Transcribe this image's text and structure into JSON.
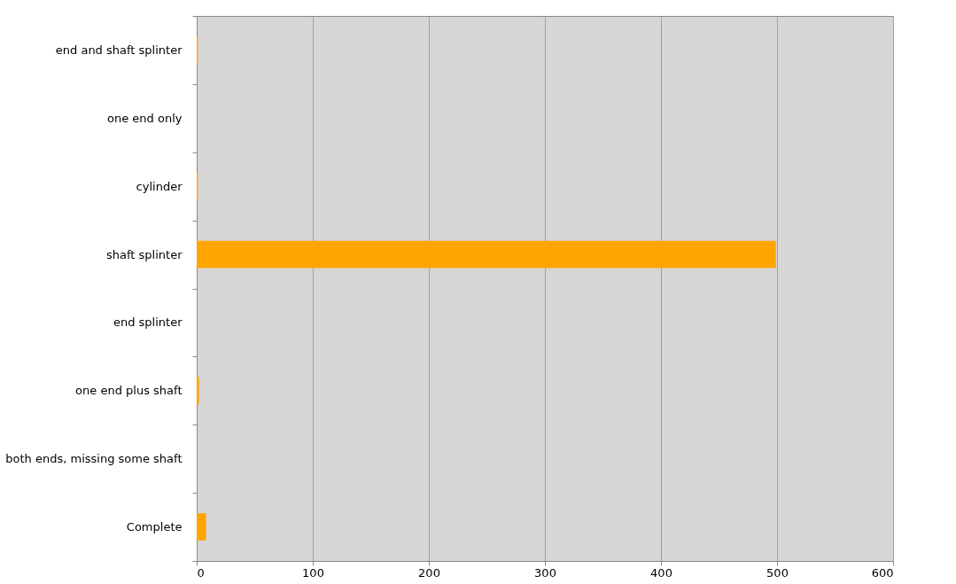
{
  "chart_data": {
    "type": "bar",
    "orientation": "horizontal",
    "categories": [
      "end and shaft splinter",
      "one end only",
      "cylinder",
      "shaft splinter",
      "end splinter",
      "one end plus shaft",
      "both ends, missing some shaft",
      "Complete"
    ],
    "values": [
      1,
      0,
      1,
      499,
      0,
      2,
      0,
      8
    ],
    "color": "#ffa500",
    "xlim": [
      0,
      600
    ],
    "xticks": [
      0,
      100,
      200,
      300,
      400,
      500,
      600
    ],
    "grid": "x"
  }
}
